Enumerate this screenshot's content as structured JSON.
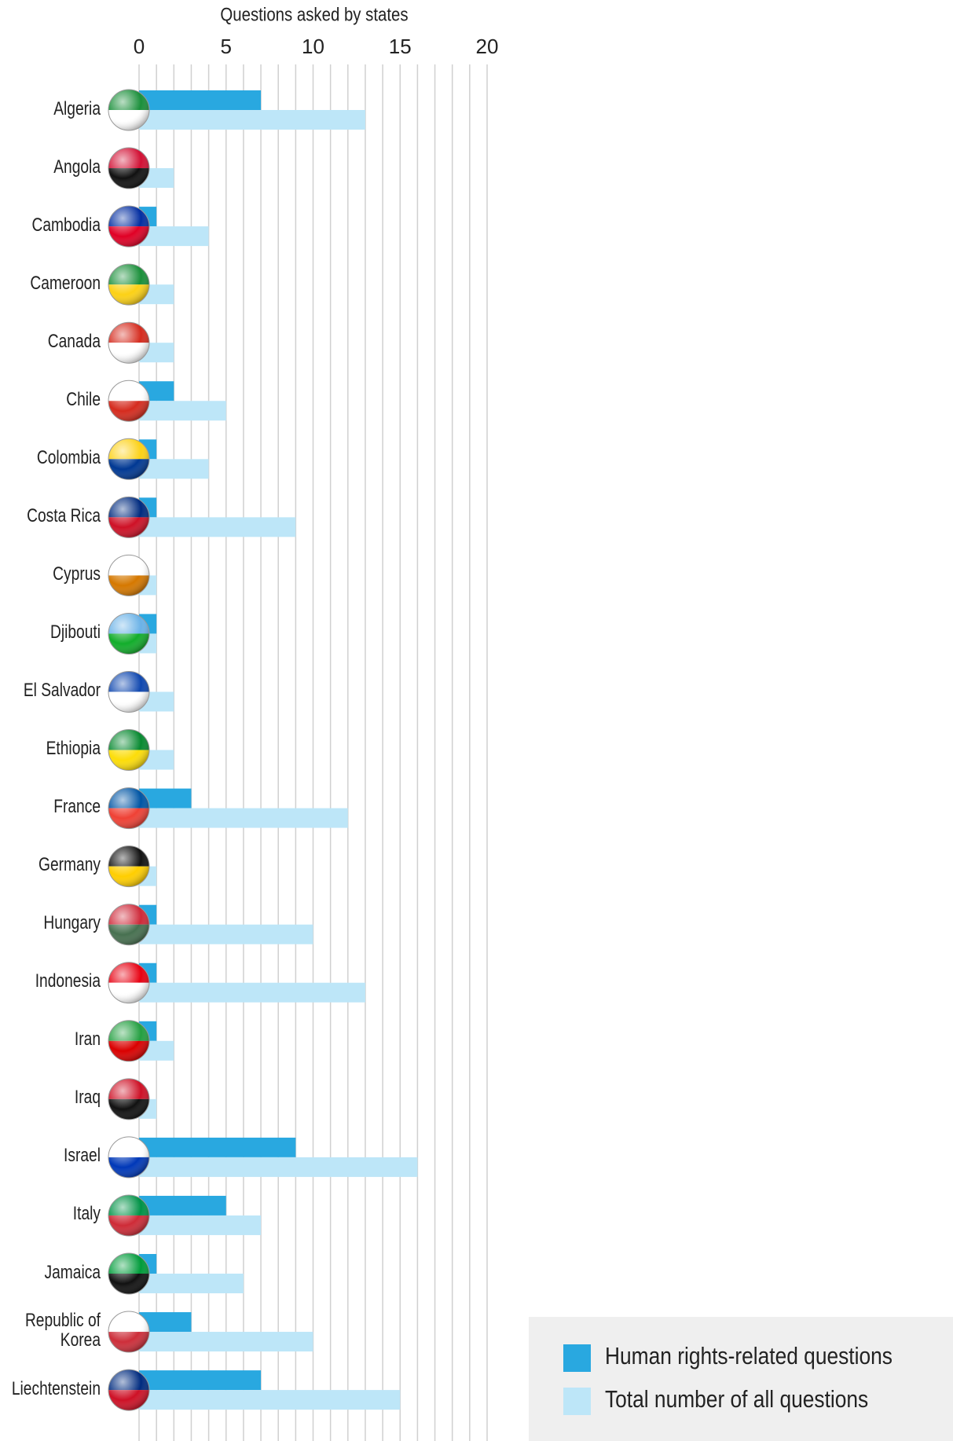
{
  "chart_data": {
    "type": "bar",
    "orientation": "horizontal",
    "title": "Questions asked by states",
    "categories": [
      "Algeria",
      "Angola",
      "Cambodia",
      "Cameroon",
      "Canada",
      "Chile",
      "Colombia",
      "Costa Rica",
      "Cyprus",
      "Djibouti",
      "El Salvador",
      "Ethiopia",
      "France",
      "Germany",
      "Hungary",
      "Indonesia",
      "Iran",
      "Iraq",
      "Israel",
      "Italy",
      "Jamaica",
      "Republic of Korea",
      "Liechtenstein"
    ],
    "series": [
      {
        "name": "Human rights-related questions",
        "color": "#29a8e0",
        "values": [
          7,
          0,
          1,
          0,
          0,
          2,
          1,
          1,
          0,
          1,
          0,
          0,
          3,
          0,
          1,
          1,
          1,
          0,
          9,
          5,
          1,
          3,
          7
        ]
      },
      {
        "name": "Total number of all questions",
        "color": "#bde6f8",
        "values": [
          13,
          2,
          4,
          2,
          2,
          5,
          4,
          9,
          1,
          1,
          2,
          2,
          12,
          1,
          10,
          13,
          2,
          1,
          16,
          7,
          6,
          10,
          15
        ]
      }
    ],
    "xlim": [
      0,
      20
    ],
    "xticks": [
      0,
      5,
      10,
      15,
      20
    ],
    "minor_xticks": [
      1,
      2,
      3,
      4,
      6,
      7,
      8,
      9,
      11,
      12,
      13,
      14,
      16,
      17,
      18,
      19
    ],
    "grid": true,
    "legend": "bottom-right"
  }
}
